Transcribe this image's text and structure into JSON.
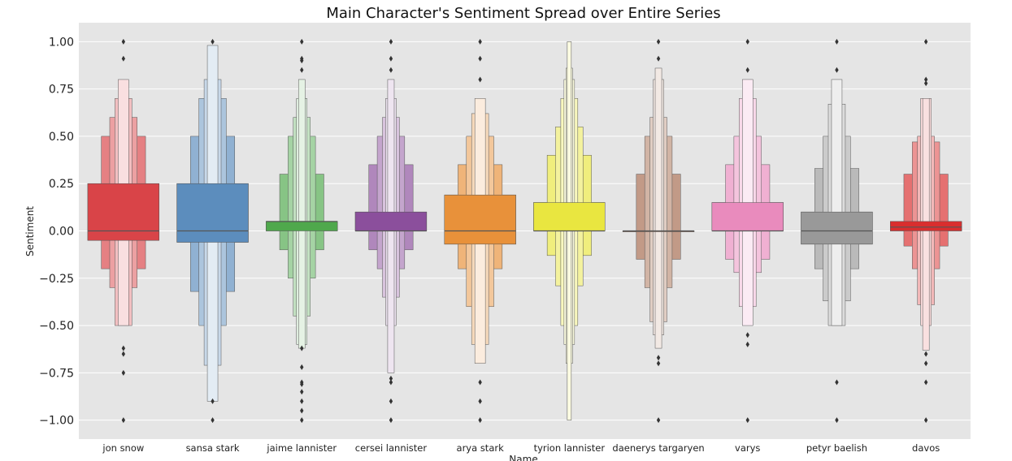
{
  "chart_data": {
    "type": "boxen",
    "title": "Main Character's Sentiment Spread over Entire Series",
    "xlabel": "Name",
    "ylabel": "Sentiment",
    "ylim": [
      -1.1,
      1.1
    ],
    "yticks": [
      "1.00",
      "0.75",
      "0.50",
      "0.25",
      "0.00",
      "−0.25",
      "−0.50",
      "−0.75",
      "−1.00"
    ],
    "ytick_values": [
      1.0,
      0.75,
      0.5,
      0.25,
      0.0,
      -0.25,
      -0.5,
      -0.75,
      -1.0
    ],
    "grid": true,
    "categories": [
      {
        "name": "jon snow",
        "color": "#d94448",
        "median": 0.0,
        "levels": [
          [
            -0.05,
            0.25
          ],
          [
            -0.2,
            0.5
          ],
          [
            -0.3,
            0.6
          ],
          [
            -0.5,
            0.7
          ],
          [
            -0.5,
            0.8
          ]
        ],
        "outliers": [
          1.0,
          0.91,
          -0.62,
          -0.65,
          -0.75,
          -1.0
        ]
      },
      {
        "name": "sansa stark",
        "color": "#5c8dbd",
        "median": 0.0,
        "levels": [
          [
            -0.06,
            0.25
          ],
          [
            -0.32,
            0.5
          ],
          [
            -0.5,
            0.7
          ],
          [
            -0.71,
            0.8
          ],
          [
            -0.9,
            0.98
          ]
        ],
        "outliers": [
          1.0,
          -0.9,
          -1.0
        ]
      },
      {
        "name": "jaime lannister",
        "color": "#4fa84c",
        "median": 0.05,
        "levels": [
          [
            0.0,
            0.05
          ],
          [
            -0.1,
            0.3
          ],
          [
            -0.25,
            0.5
          ],
          [
            -0.45,
            0.6
          ],
          [
            -0.6,
            0.7
          ],
          [
            -0.62,
            0.8
          ]
        ],
        "outliers": [
          1.0,
          0.91,
          0.9,
          0.85,
          -0.62,
          -0.72,
          -0.8,
          -0.81,
          -0.85,
          -0.9,
          -0.95,
          -1.0
        ]
      },
      {
        "name": "cersei lannister",
        "color": "#8b4f9c",
        "median": 0.0,
        "levels": [
          [
            0.0,
            0.1
          ],
          [
            -0.1,
            0.35
          ],
          [
            -0.2,
            0.5
          ],
          [
            -0.35,
            0.6
          ],
          [
            -0.5,
            0.7
          ],
          [
            -0.75,
            0.8
          ]
        ],
        "outliers": [
          1.0,
          0.91,
          0.85,
          -0.78,
          -0.8,
          -0.9,
          -1.0
        ]
      },
      {
        "name": "arya stark",
        "color": "#e8913a",
        "median": 0.0,
        "levels": [
          [
            -0.07,
            0.19
          ],
          [
            -0.2,
            0.35
          ],
          [
            -0.4,
            0.5
          ],
          [
            -0.6,
            0.62
          ],
          [
            -0.7,
            0.7
          ]
        ],
        "outliers": [
          1.0,
          0.91,
          0.8,
          -0.8,
          -0.9,
          -1.0
        ]
      },
      {
        "name": "tyrion lannister",
        "color": "#e9e640",
        "median": 0.0,
        "levels": [
          [
            0.0,
            0.15
          ],
          [
            -0.13,
            0.4
          ],
          [
            -0.29,
            0.55
          ],
          [
            -0.5,
            0.7
          ],
          [
            -0.6,
            0.8
          ],
          [
            -0.7,
            0.86
          ],
          [
            -1.0,
            1.0
          ]
        ],
        "outliers": []
      },
      {
        "name": "daenerys targaryen",
        "color": "#a56b4e",
        "median": 0.0,
        "levels": [
          [
            0.0,
            0.0
          ],
          [
            -0.15,
            0.3
          ],
          [
            -0.3,
            0.5
          ],
          [
            -0.48,
            0.6
          ],
          [
            -0.55,
            0.8
          ],
          [
            -0.62,
            0.86
          ]
        ],
        "outliers": [
          1.0,
          0.91,
          -0.67,
          -0.7,
          -1.0
        ]
      },
      {
        "name": "varys",
        "color": "#e98bbd",
        "median": 0.0,
        "levels": [
          [
            0.0,
            0.15
          ],
          [
            -0.15,
            0.35
          ],
          [
            -0.22,
            0.5
          ],
          [
            -0.4,
            0.7
          ],
          [
            -0.5,
            0.8
          ]
        ],
        "outliers": [
          1.0,
          0.85,
          -0.55,
          -0.6,
          -1.0
        ]
      },
      {
        "name": "petyr baelish",
        "color": "#999999",
        "median": 0.0,
        "levels": [
          [
            -0.07,
            0.1
          ],
          [
            -0.2,
            0.33
          ],
          [
            -0.37,
            0.5
          ],
          [
            -0.5,
            0.67
          ],
          [
            -0.5,
            0.8
          ]
        ],
        "outliers": [
          1.0,
          0.85,
          -0.8,
          -1.0
        ]
      },
      {
        "name": "davos",
        "color": "#d92e2e",
        "median": 0.02,
        "levels": [
          [
            0.0,
            0.05
          ],
          [
            -0.08,
            0.3
          ],
          [
            -0.2,
            0.47
          ],
          [
            -0.39,
            0.5
          ],
          [
            -0.5,
            0.7
          ],
          [
            -0.63,
            0.7
          ]
        ],
        "outliers": [
          1.0,
          0.8,
          0.78,
          -0.65,
          -0.7,
          -0.8,
          -1.0
        ]
      }
    ]
  }
}
